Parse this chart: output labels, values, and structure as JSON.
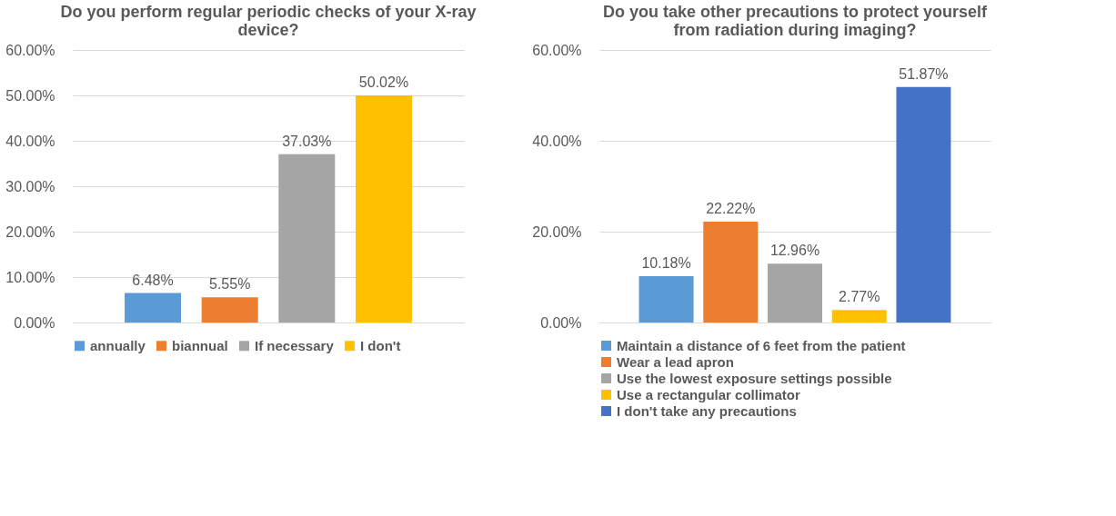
{
  "chart_data": [
    {
      "type": "bar",
      "title": "Do you perform regular periodic checks of your X-ray device?",
      "categories": [
        null
      ],
      "tick_labels": "y",
      "ylim": [
        0,
        60
      ],
      "yticks": [
        {
          "value": 0,
          "label": "0.00%"
        },
        {
          "value": 10,
          "label": "10.00%"
        },
        {
          "value": 20,
          "label": "20.00%"
        },
        {
          "value": 30,
          "label": "30.00%"
        },
        {
          "value": 40,
          "label": "40.00%"
        },
        {
          "value": 50,
          "label": "50.00%"
        },
        {
          "value": 60,
          "label": "60.00%"
        }
      ],
      "grid": "y",
      "legend": "bottom",
      "series": [
        {
          "name": "annually",
          "color": "#5b9bd5",
          "values": [
            6.48
          ],
          "value_labels": [
            "6.48%"
          ]
        },
        {
          "name": "biannual",
          "color": "#ed7d31",
          "values": [
            5.55
          ],
          "value_labels": [
            "5.55%"
          ]
        },
        {
          "name": "If necessary",
          "color": "#a5a5a5",
          "values": [
            37.03
          ],
          "value_labels": [
            "37.03%"
          ]
        },
        {
          "name": "I don't",
          "color": "#ffc000",
          "values": [
            50.02
          ],
          "value_labels": [
            "50.02%"
          ]
        }
      ]
    },
    {
      "type": "bar",
      "title": "Do you take other precautions to protect yourself from radiation during imaging?",
      "categories": [
        null
      ],
      "tick_labels": "y",
      "ylim": [
        0,
        60
      ],
      "yticks": [
        {
          "value": 0,
          "label": "0.00%"
        },
        {
          "value": 20,
          "label": "20.00%"
        },
        {
          "value": 40,
          "label": "40.00%"
        },
        {
          "value": 60,
          "label": "60.00%"
        }
      ],
      "grid": "y",
      "legend": "bottom",
      "series": [
        {
          "name": "Maintain a distance of 6 feet from the patient",
          "color": "#5b9bd5",
          "values": [
            10.18
          ],
          "value_labels": [
            "10.18%"
          ]
        },
        {
          "name": "Wear a lead apron",
          "color": "#ed7d31",
          "values": [
            22.22
          ],
          "value_labels": [
            "22.22%"
          ]
        },
        {
          "name": "Use the lowest exposure settings possible",
          "color": "#a5a5a5",
          "values": [
            12.96
          ],
          "value_labels": [
            "12.96%"
          ]
        },
        {
          "name": "Use a rectangular collimator",
          "color": "#ffc000",
          "values": [
            2.77
          ],
          "value_labels": [
            "2.77%"
          ]
        },
        {
          "name": "I don't take any precautions",
          "color": "#4472c4",
          "values": [
            51.87
          ],
          "value_labels": [
            "51.87%"
          ]
        }
      ]
    }
  ]
}
